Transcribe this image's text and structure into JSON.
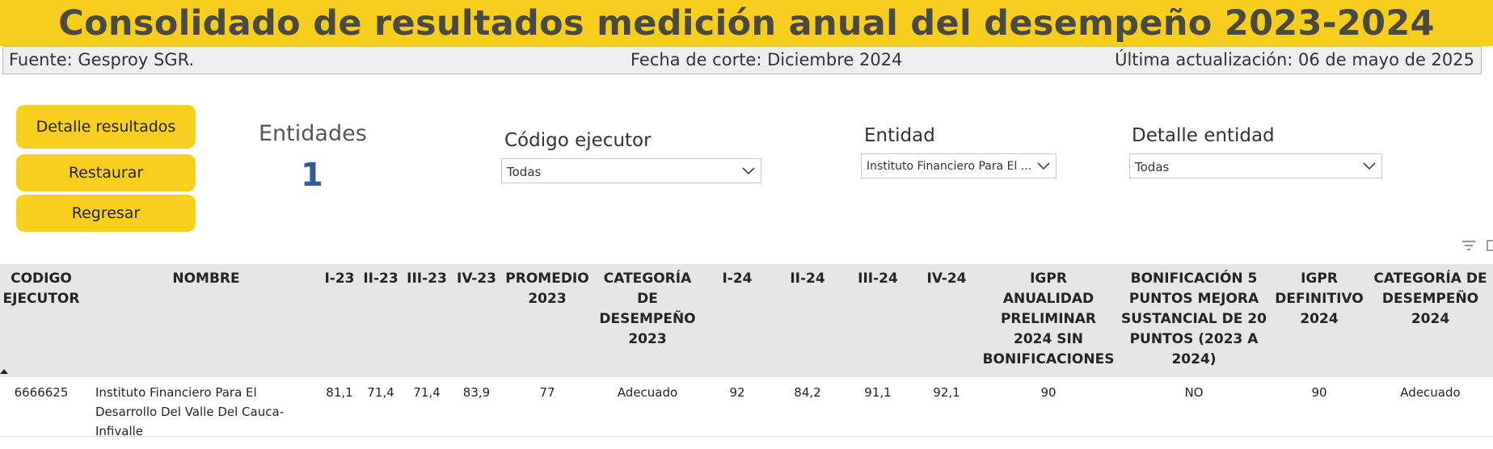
{
  "header": {
    "title": "Consolidado de resultados medición anual del desempeño 2023-2024",
    "source": "Fuente: Gesproy SGR.",
    "cutoff": "Fecha de corte: Diciembre 2024",
    "updated": "Última actualización: 06 de mayo de 2025"
  },
  "buttons": {
    "detail": "Detalle resultados",
    "reset": "Restaurar",
    "back": "Regresar"
  },
  "card": {
    "label": "Entidades",
    "value": "1"
  },
  "slicers": {
    "codigo": {
      "title": "Código ejecutor",
      "value": "Todas"
    },
    "entidad": {
      "title": "Entidad",
      "value": "Instituto Financiero Para El ..."
    },
    "detalle": {
      "title": "Detalle entidad",
      "value": "Todas"
    }
  },
  "table": {
    "headers": {
      "codigo": [
        "CODIGO",
        "EJECUTOR"
      ],
      "nombre": [
        "NOMBRE"
      ],
      "i23": [
        "I-23"
      ],
      "ii23": [
        "II-23"
      ],
      "iii23": [
        "III-23"
      ],
      "iv23": [
        "IV-23"
      ],
      "prom": [
        "PROMEDIO",
        "2023"
      ],
      "cat23": [
        "CATEGORÍA",
        "DE",
        "DESEMPEÑO",
        "2023"
      ],
      "i24": [
        "I-24"
      ],
      "ii24": [
        "II-24"
      ],
      "iii24": [
        "III-24"
      ],
      "iv24": [
        "IV-24"
      ],
      "igpr": [
        "IGPR",
        "ANUALIDAD",
        "PRELIMINAR",
        "2024 SIN",
        "BONIFICACIONES"
      ],
      "bonif": [
        "BONIFICACIÓN 5",
        "PUNTOS MEJORA",
        "SUSTANCIAL DE 20",
        "PUNTOS (2023 A",
        "2024)"
      ],
      "igprdef": [
        "IGPR",
        "DEFINITIVO",
        "2024"
      ],
      "cat24": [
        "CATEGORÍA DE",
        "DESEMPEÑO",
        "2024"
      ]
    },
    "row": {
      "codigo": "6666625",
      "nombre": [
        "Instituto Financiero Para El",
        "Desarrollo Del Valle Del Cauca-",
        "Infivalle"
      ],
      "i23": "81,1",
      "ii23": "71,4",
      "iii23": "71,4",
      "iv23": "83,9",
      "prom": "77",
      "cat23": "Adecuado",
      "i24": "92",
      "ii24": "84,2",
      "iii24": "91,1",
      "iv24": "92,1",
      "igpr": "90",
      "bonif": "NO",
      "igprdef": "90",
      "cat24": "Adecuado"
    }
  }
}
